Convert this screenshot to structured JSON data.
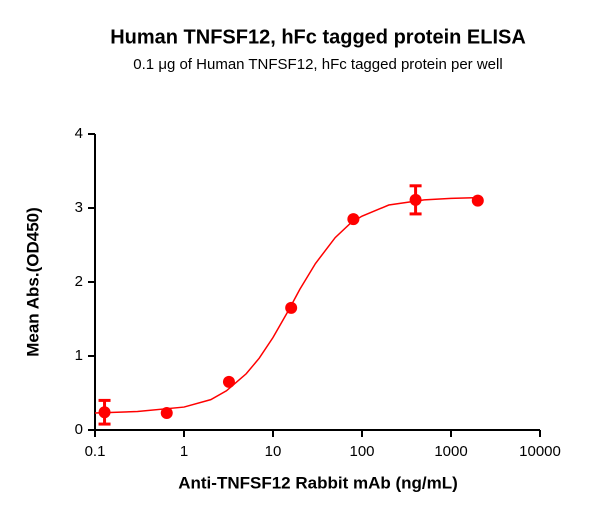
{
  "chart_data": {
    "type": "scatter",
    "title": "Human TNFSF12, hFc tagged protein ELISA",
    "subtitle": "0.1 μg of Human TNFSF12, hFc tagged protein per well",
    "x_label": "Anti-TNFSF12 Rabbit mAb (ng/mL)",
    "y_label": "Mean Abs.(OD450)",
    "x_scale": "log",
    "xlim": [
      0.1,
      10000
    ],
    "xticks": [
      0.1,
      1,
      10,
      100,
      1000,
      10000
    ],
    "ylim": [
      0,
      4
    ],
    "yticks": [
      0,
      1,
      2,
      3,
      4
    ],
    "color": "#ff0000",
    "x": [
      0.128,
      0.64,
      3.2,
      16,
      80,
      400,
      2000
    ],
    "values": [
      0.24,
      0.23,
      0.65,
      1.65,
      2.85,
      3.11,
      3.1
    ],
    "errors": [
      0.16,
      null,
      null,
      null,
      null,
      0.19,
      null
    ],
    "fit": {
      "x": [
        0.1,
        0.3,
        1,
        2,
        3,
        5,
        7,
        10,
        15,
        20,
        30,
        50,
        75,
        100,
        200,
        500,
        1000,
        2000
      ],
      "values": [
        0.23,
        0.25,
        0.31,
        0.41,
        0.53,
        0.76,
        0.97,
        1.25,
        1.62,
        1.9,
        2.25,
        2.6,
        2.8,
        2.89,
        3.04,
        3.11,
        3.13,
        3.14
      ]
    }
  }
}
